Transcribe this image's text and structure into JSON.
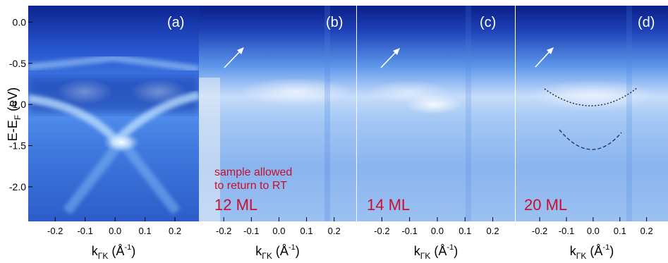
{
  "y_axis": {
    "label_main": "E-E",
    "label_sub": "F",
    "label_unit": " (eV)",
    "ticks": [
      {
        "value": 0.0,
        "label": "0.0"
      },
      {
        "value": -0.5,
        "label": "-0.5"
      },
      {
        "value": -1.0,
        "label": "-1.0"
      },
      {
        "value": -1.5,
        "label": "-1.5"
      },
      {
        "value": -2.0,
        "label": "-2.0"
      }
    ],
    "range": [
      -2.42,
      0.2
    ]
  },
  "x_axis": {
    "label_main": "k",
    "label_sub": "ΓK",
    "label_unit_open": " (Å",
    "label_sup": "-1",
    "label_unit_close": ")",
    "ticks": [
      {
        "value": -0.2,
        "label": "-0.2"
      },
      {
        "value": -0.1,
        "label": "-0.1"
      },
      {
        "value": 0.0,
        "label": "0.0"
      },
      {
        "value": 0.1,
        "label": "0.1"
      },
      {
        "value": 0.2,
        "label": "0.2"
      }
    ],
    "range": [
      -0.29,
      0.28
    ]
  },
  "panels": [
    {
      "id": "a",
      "tag": "(a)",
      "thickness": "",
      "note_line1": "",
      "note_line2": ""
    },
    {
      "id": "b",
      "tag": "(b)",
      "thickness": "12 ML",
      "note_line1": "sample allowed",
      "note_line2": "to return to RT"
    },
    {
      "id": "c",
      "tag": "(c)",
      "thickness": "14 ML",
      "note_line1": "",
      "note_line2": ""
    },
    {
      "id": "d",
      "tag": "(d)",
      "thickness": "20 ML",
      "note_line1": "",
      "note_line2": ""
    }
  ],
  "colors": {
    "annotation_red": "#c8102e",
    "panel_deep": "#0a1f8a",
    "panel_bright": "#eaf4ff"
  }
}
